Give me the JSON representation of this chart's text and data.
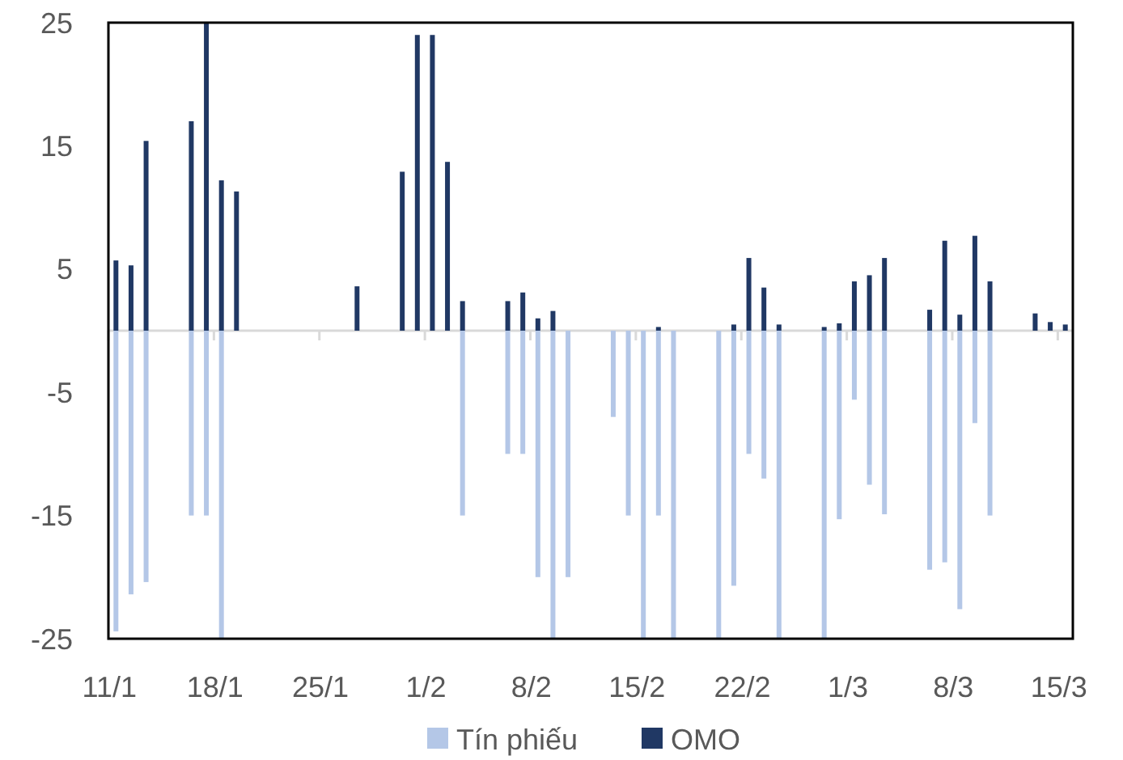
{
  "chart_data": {
    "type": "bar",
    "categories": [
      "11/1",
      null,
      null,
      null,
      null,
      null,
      null,
      "18/1",
      null,
      null,
      null,
      null,
      null,
      null,
      "25/1",
      null,
      null,
      null,
      null,
      null,
      null,
      "1/2",
      null,
      null,
      null,
      null,
      null,
      null,
      "8/2",
      null,
      null,
      null,
      null,
      null,
      null,
      "15/2",
      null,
      null,
      null,
      null,
      null,
      null,
      "22/2",
      null,
      null,
      null,
      null,
      null,
      null,
      "1/3",
      null,
      null,
      null,
      null,
      null,
      null,
      "8/3",
      null,
      null,
      null,
      null,
      null,
      null,
      "15/3"
    ],
    "series": [
      {
        "name": "Tín phiếu",
        "color": "#b4c7e7",
        "values": [
          -24.4,
          -21.4,
          -20.4,
          null,
          null,
          -15,
          -15,
          -25,
          null,
          null,
          null,
          null,
          null,
          null,
          null,
          null,
          null,
          null,
          null,
          null,
          null,
          null,
          null,
          -15,
          null,
          null,
          -10,
          -10,
          -20,
          -25,
          -20,
          null,
          null,
          -7,
          -15,
          -25,
          -15,
          -25,
          null,
          null,
          -25,
          -20.7,
          -10,
          -12,
          -25,
          null,
          null,
          -25,
          -15.3,
          -5.6,
          -12.5,
          -14.9,
          null,
          null,
          -19.4,
          -18.8,
          -22.6,
          -7.5,
          -15,
          null,
          null,
          null,
          null,
          null
        ]
      },
      {
        "name": "OMO",
        "color": "#203864",
        "values": [
          5.7,
          5.3,
          15.4,
          null,
          null,
          17,
          25,
          12.2,
          11.3,
          null,
          null,
          null,
          null,
          null,
          null,
          null,
          3.6,
          null,
          null,
          12.9,
          24,
          24,
          13.7,
          2.4,
          null,
          null,
          2.4,
          3.1,
          1,
          1.6,
          null,
          null,
          null,
          null,
          null,
          null,
          0.3,
          null,
          null,
          null,
          null,
          0.5,
          5.9,
          3.5,
          0.5,
          null,
          null,
          0.3,
          0.6,
          4,
          4.5,
          5.9,
          null,
          null,
          1.7,
          7.3,
          1.3,
          7.7,
          4,
          null,
          null,
          1.4,
          0.7,
          0.5
        ]
      }
    ],
    "ylim": [
      -25,
      25
    ],
    "yticks": [
      -25,
      -15,
      -5,
      5,
      15,
      25
    ],
    "grid": false,
    "legend": "bottom"
  }
}
